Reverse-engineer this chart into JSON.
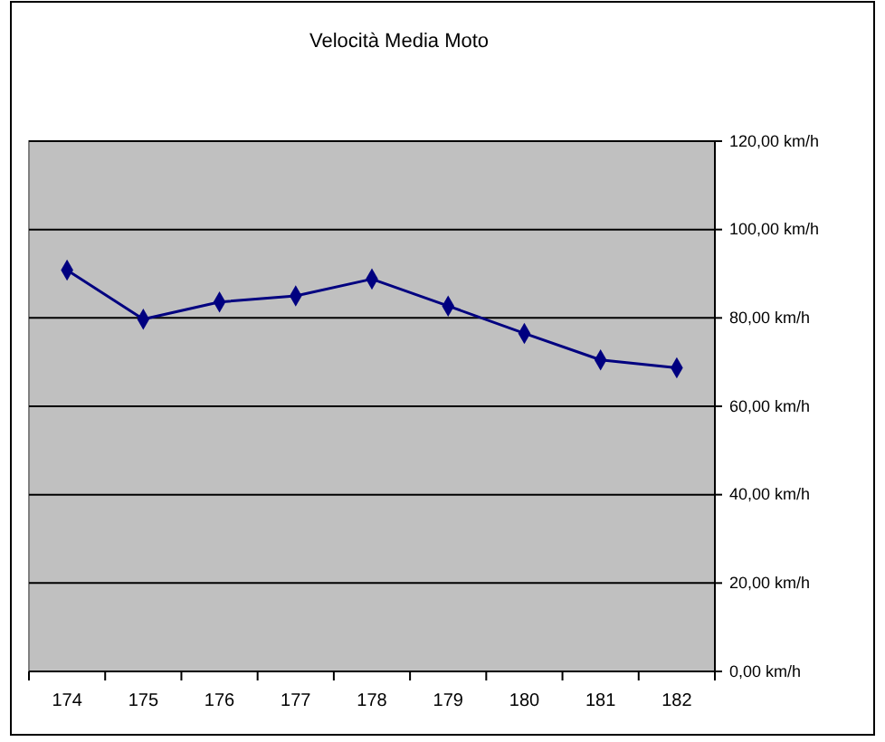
{
  "chart_data": {
    "type": "line",
    "title": "Velocità Media Moto",
    "categories": [
      "174",
      "175",
      "176",
      "177",
      "178",
      "179",
      "180",
      "181",
      "182"
    ],
    "series": [
      {
        "color": "#000080",
        "values": [
          90.8,
          79.7,
          83.6,
          85,
          88.8,
          82.7,
          76.5,
          70.5,
          68.7
        ]
      }
    ],
    "ylim": [
      0,
      120
    ],
    "yticks": [
      {
        "value": 0,
        "label": "0,00 km/h"
      },
      {
        "value": 20,
        "label": "20,00 km/h"
      },
      {
        "value": 40,
        "label": "40,00 km/h"
      },
      {
        "value": 60,
        "label": "60,00 km/h"
      },
      {
        "value": 80,
        "label": "80,00 km/h"
      },
      {
        "value": 100,
        "label": "100,00 km/h"
      },
      {
        "value": 120,
        "label": "120,00 km/h"
      }
    ],
    "grid": "y",
    "marker": "diamond",
    "line_style": "solid"
  }
}
